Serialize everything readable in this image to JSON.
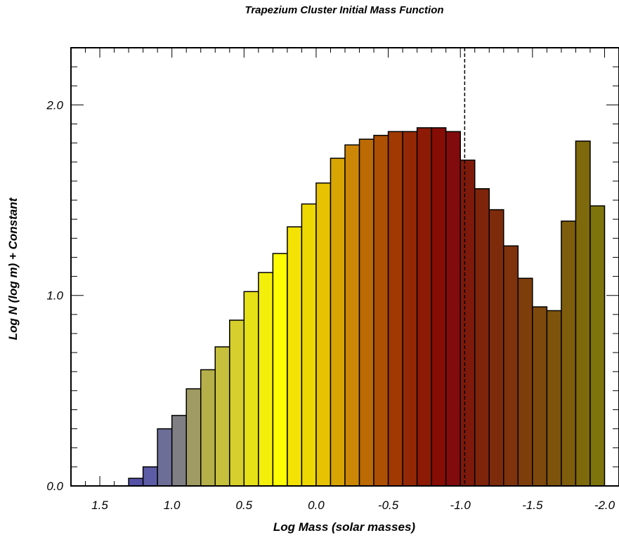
{
  "chart_data": {
    "type": "bar",
    "title": "Trapezium Cluster Initial Mass Function",
    "xlabel": "Log Mass (solar masses)",
    "ylabel": "Log N (log m) + Constant",
    "xlim": [
      1.7,
      -2.1
    ],
    "ylim": [
      0.0,
      2.3
    ],
    "x_reversed": true,
    "bin_width": 0.1,
    "bin_left_edges": [
      1.3,
      1.2,
      1.1,
      1.0,
      0.9,
      0.8,
      0.7,
      0.6,
      0.5,
      0.4,
      0.3,
      0.2,
      0.1,
      0.0,
      -0.1,
      -0.2,
      -0.3,
      -0.4,
      -0.5,
      -0.6,
      -0.7,
      -0.8,
      -0.9,
      -1.0,
      -1.1,
      -1.2,
      -1.3,
      -1.4,
      -1.5,
      -1.6,
      -1.7,
      -1.8,
      -1.9
    ],
    "values": [
      0.04,
      0.1,
      0.3,
      0.37,
      0.51,
      0.61,
      0.73,
      0.87,
      1.02,
      1.12,
      1.22,
      1.36,
      1.48,
      1.59,
      1.72,
      1.79,
      1.82,
      1.84,
      1.86,
      1.86,
      1.88,
      1.88,
      1.86,
      1.71,
      1.56,
      1.45,
      1.26,
      1.09,
      0.94,
      0.92,
      1.39,
      1.81,
      1.47
    ],
    "colors": [
      "#5551a6",
      "#5c5ca6",
      "#6d6e98",
      "#7f7f84",
      "#a09b62",
      "#b6b04a",
      "#c6c03c",
      "#d6cf2c",
      "#e6e017",
      "#f4ee0b",
      "#fefc00",
      "#f4e204",
      "#eed802",
      "#e6c202",
      "#d9a503",
      "#cc8706",
      "#bc6a04",
      "#ad5003",
      "#a03a02",
      "#952804",
      "#8c1a05",
      "#860d05",
      "#820c0d",
      "#7e1a0b",
      "#7e240b",
      "#7e2b0c",
      "#7e330c",
      "#7e3e0c",
      "#7e490c",
      "#7e540c",
      "#7e5e0c",
      "#7e690c",
      "#7e740c"
    ],
    "baseline_segment": [
      1.5,
      1.3
    ],
    "vline_x": -1.03,
    "xticks": [
      1.5,
      1.0,
      0.5,
      0.0,
      -0.5,
      -1.0,
      -1.5,
      -2.0
    ],
    "xtick_labels": [
      "1.5",
      "1.0",
      "0.5",
      "0.0",
      "-0.5",
      "-1.0",
      "-1.5",
      "-2.0"
    ],
    "yticks": [
      0.0,
      1.0,
      2.0
    ],
    "ytick_labels": [
      "0.0",
      "1.0",
      "2.0"
    ]
  }
}
